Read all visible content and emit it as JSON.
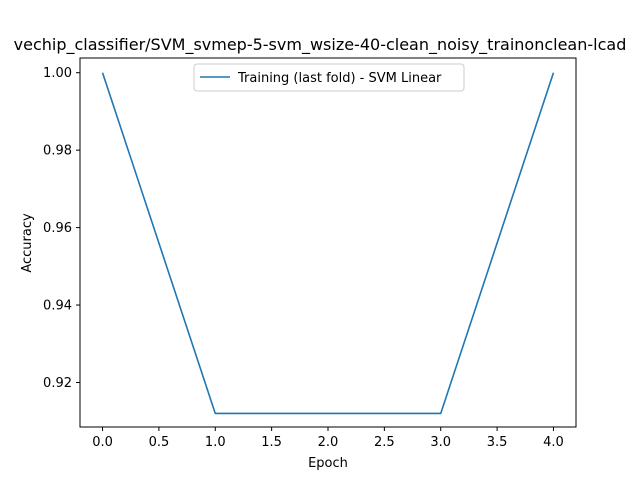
{
  "chart_data": {
    "type": "line",
    "title": "vechip_classifier/SVM_svmep-5-svm_wsize-40-clean_noisy_trainonclean-lcad",
    "xlabel": "Epoch",
    "ylabel": "Accuracy",
    "xlim": [
      -0.2,
      4.2
    ],
    "ylim": [
      0.9085,
      1.0038
    ],
    "xticks": [
      0.0,
      0.5,
      1.0,
      1.5,
      2.0,
      2.5,
      3.0,
      3.5,
      4.0
    ],
    "xtick_labels": [
      "0.0",
      "0.5",
      "1.0",
      "1.5",
      "2.0",
      "2.5",
      "3.0",
      "3.5",
      "4.0"
    ],
    "yticks": [
      0.92,
      0.94,
      0.96,
      0.98,
      1.0
    ],
    "ytick_labels": [
      "0.92",
      "0.94",
      "0.96",
      "0.98",
      "1.00"
    ],
    "grid": false,
    "legend_position": "top-center",
    "series": [
      {
        "name": "Training (last fold) - SVM Linear",
        "color": "#1f77b4",
        "x": [
          0,
          1,
          2,
          3,
          4
        ],
        "y": [
          1.0,
          0.912,
          0.912,
          0.912,
          1.0
        ]
      }
    ]
  }
}
